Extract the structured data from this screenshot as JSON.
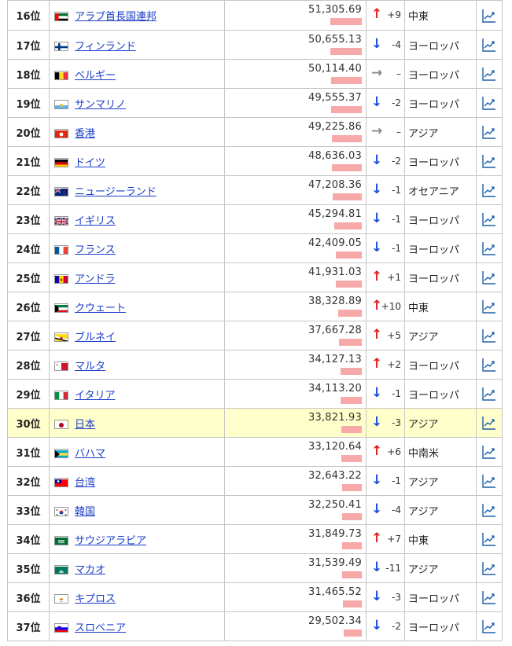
{
  "rows": [
    {
      "rank": "16位",
      "country": "アラブ首長国連邦",
      "flag": "ae",
      "value": "51,305.69",
      "bar": 0.4,
      "dir": "up",
      "change": "+9",
      "region": "中東"
    },
    {
      "rank": "17位",
      "country": "フィンランド",
      "flag": "fi",
      "value": "50,655.13",
      "bar": 0.4,
      "dir": "down",
      "change": "-4",
      "region": "ヨーロッパ"
    },
    {
      "rank": "18位",
      "country": "ベルギー",
      "flag": "be",
      "value": "50,114.40",
      "bar": 0.39,
      "dir": "flat",
      "change": "–",
      "region": "ヨーロッパ"
    },
    {
      "rank": "19位",
      "country": "サンマリノ",
      "flag": "sm",
      "value": "49,555.37",
      "bar": 0.39,
      "dir": "down",
      "change": "-2",
      "region": "ヨーロッパ"
    },
    {
      "rank": "20位",
      "country": "香港",
      "flag": "hk",
      "value": "49,225.86",
      "bar": 0.38,
      "dir": "flat",
      "change": "–",
      "region": "アジア"
    },
    {
      "rank": "21位",
      "country": "ドイツ",
      "flag": "de",
      "value": "48,636.03",
      "bar": 0.38,
      "dir": "down",
      "change": "-2",
      "region": "ヨーロッパ"
    },
    {
      "rank": "22位",
      "country": "ニュージーランド",
      "flag": "nz",
      "value": "47,208.36",
      "bar": 0.37,
      "dir": "down",
      "change": "-1",
      "region": "オセアニア"
    },
    {
      "rank": "23位",
      "country": "イギリス",
      "flag": "gb",
      "value": "45,294.81",
      "bar": 0.35,
      "dir": "down",
      "change": "-1",
      "region": "ヨーロッパ"
    },
    {
      "rank": "24位",
      "country": "フランス",
      "flag": "fr",
      "value": "42,409.05",
      "bar": 0.33,
      "dir": "down",
      "change": "-1",
      "region": "ヨーロッパ"
    },
    {
      "rank": "25位",
      "country": "アンドラ",
      "flag": "ad",
      "value": "41,931.03",
      "bar": 0.33,
      "dir": "up",
      "change": "+1",
      "region": "ヨーロッパ"
    },
    {
      "rank": "26位",
      "country": "クウェート",
      "flag": "kw",
      "value": "38,328.89",
      "bar": 0.3,
      "dir": "up",
      "change": "+10",
      "region": "中東"
    },
    {
      "rank": "27位",
      "country": "ブルネイ",
      "flag": "bn",
      "value": "37,667.28",
      "bar": 0.29,
      "dir": "up",
      "change": "+5",
      "region": "アジア"
    },
    {
      "rank": "28位",
      "country": "マルタ",
      "flag": "mt",
      "value": "34,127.13",
      "bar": 0.27,
      "dir": "up",
      "change": "+2",
      "region": "ヨーロッパ"
    },
    {
      "rank": "29位",
      "country": "イタリア",
      "flag": "it",
      "value": "34,113.20",
      "bar": 0.27,
      "dir": "down",
      "change": "-1",
      "region": "ヨーロッパ"
    },
    {
      "rank": "30位",
      "country": "日本",
      "flag": "jp",
      "value": "33,821.93",
      "bar": 0.26,
      "dir": "down",
      "change": "-3",
      "region": "アジア",
      "highlight": true
    },
    {
      "rank": "31位",
      "country": "バハマ",
      "flag": "bs",
      "value": "33,120.64",
      "bar": 0.26,
      "dir": "up",
      "change": "+6",
      "region": "中南米"
    },
    {
      "rank": "32位",
      "country": "台湾",
      "flag": "tw",
      "value": "32,643.22",
      "bar": 0.25,
      "dir": "down",
      "change": "-1",
      "region": "アジア"
    },
    {
      "rank": "33位",
      "country": "韓国",
      "flag": "kr",
      "value": "32,250.41",
      "bar": 0.25,
      "dir": "down",
      "change": "-4",
      "region": "アジア"
    },
    {
      "rank": "34位",
      "country": "サウジアラビア",
      "flag": "sa",
      "value": "31,849.73",
      "bar": 0.25,
      "dir": "up",
      "change": "+7",
      "region": "中東"
    },
    {
      "rank": "35位",
      "country": "マカオ",
      "flag": "mo",
      "value": "31,539.49",
      "bar": 0.25,
      "dir": "down",
      "change": "-11",
      "region": "アジア"
    },
    {
      "rank": "36位",
      "country": "キプロス",
      "flag": "cy",
      "value": "31,465.52",
      "bar": 0.24,
      "dir": "down",
      "change": "-3",
      "region": "ヨーロッパ"
    },
    {
      "rank": "37位",
      "country": "スロベニア",
      "flag": "si",
      "value": "29,502.34",
      "bar": 0.23,
      "dir": "down",
      "change": "-2",
      "region": "ヨーロッパ"
    }
  ],
  "colors": {
    "link": "#1a3cc8",
    "up": "#e02020",
    "down": "#1d4fd8",
    "flat": "#888888",
    "bar": "#f7a8a8",
    "highlight": "#ffffcc"
  },
  "icons": {
    "up": "arrow-up-icon",
    "down": "arrow-down-icon",
    "flat": "arrow-right-icon",
    "chart": "line-chart-icon"
  }
}
